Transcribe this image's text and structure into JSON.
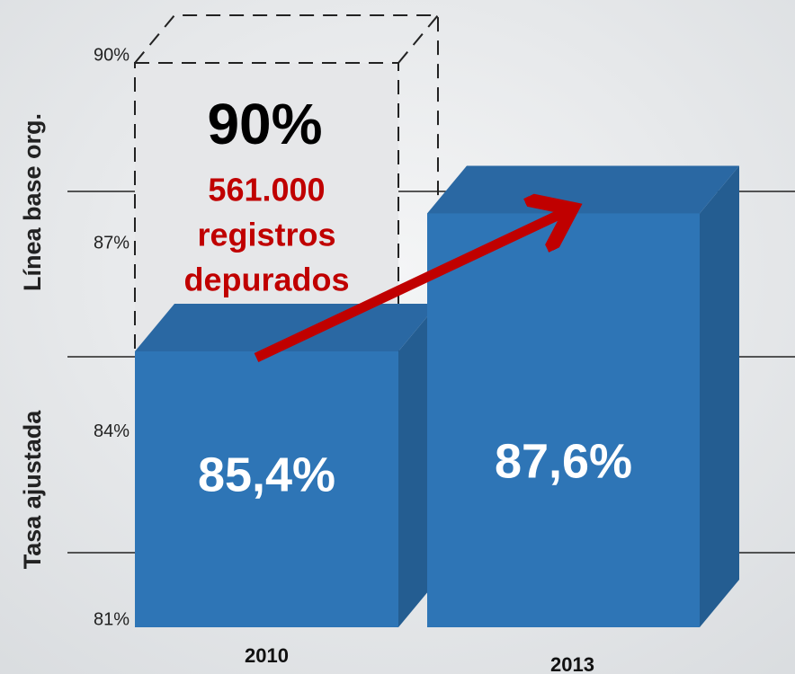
{
  "chart_data": {
    "type": "bar3d",
    "categories": [
      "2010",
      "2013"
    ],
    "values": [
      85.4,
      87.6
    ],
    "value_labels": [
      "85,4%",
      "87,6%"
    ],
    "color": "#2e75b6",
    "ylim": [
      81,
      90
    ],
    "yticks": [
      {
        "value": 81,
        "label": "81%"
      },
      {
        "value": 84,
        "label": "84%"
      },
      {
        "value": 87,
        "label": "87%"
      },
      {
        "value": 90,
        "label": "90%"
      }
    ],
    "y_axis_labels": [
      "Tasa ajustada",
      "Línea base org."
    ],
    "annotations": {
      "target_value": 90,
      "target_label": "90%",
      "note": [
        "561.000",
        "registros",
        "depurados"
      ]
    }
  }
}
